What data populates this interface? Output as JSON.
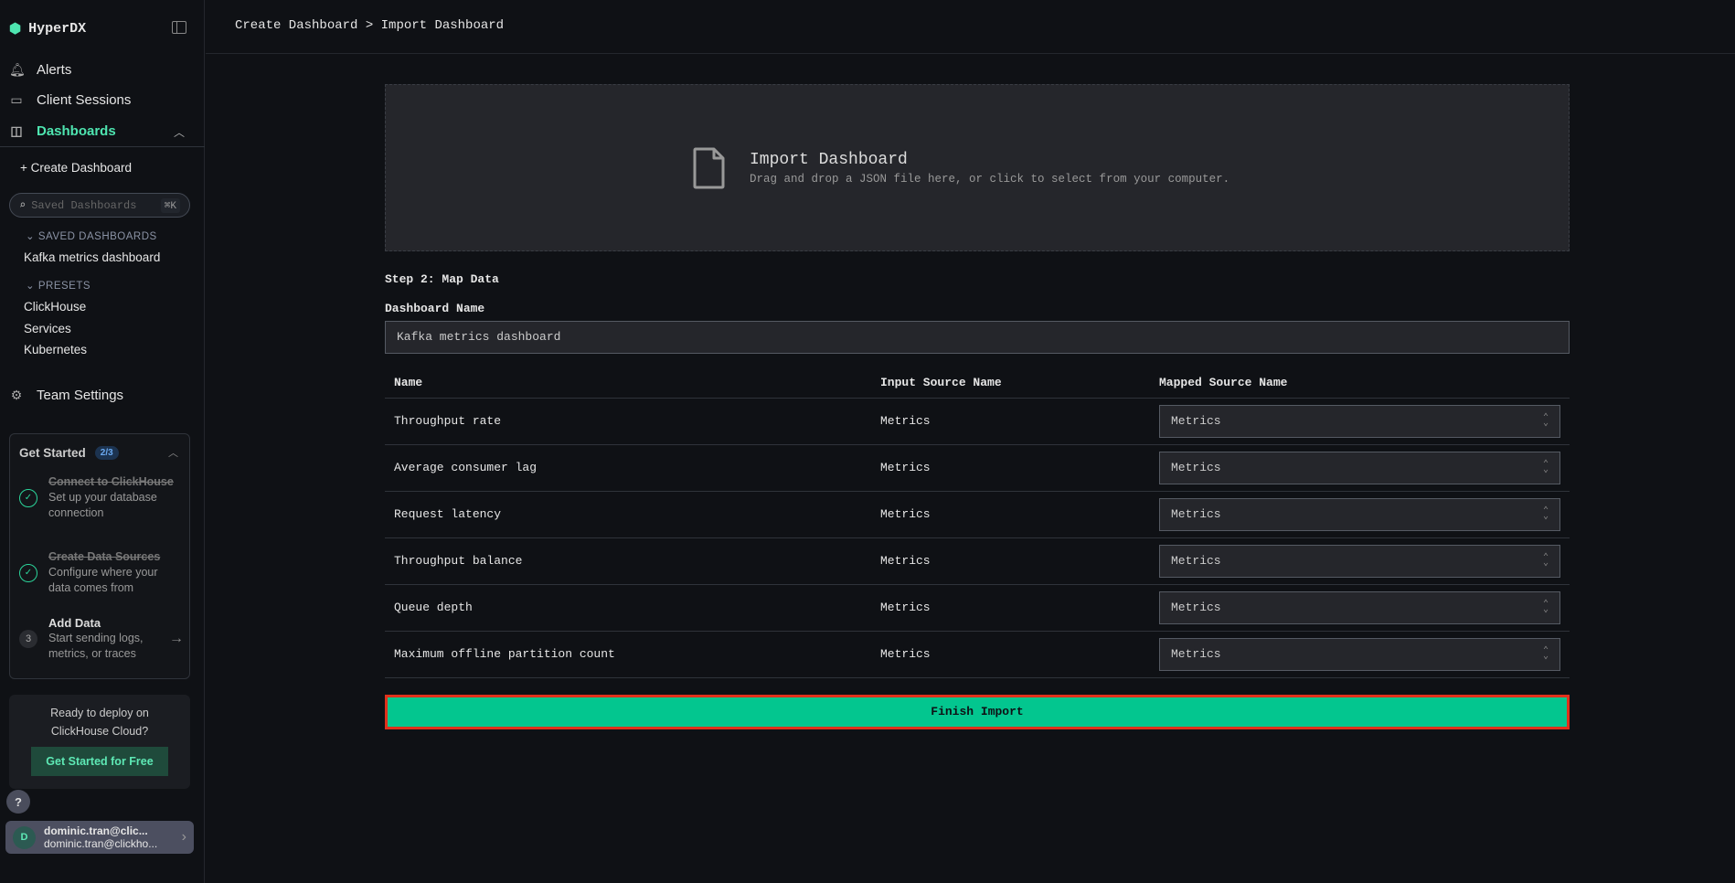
{
  "app": {
    "name": "HyperDX"
  },
  "sidebar": {
    "nav": [
      {
        "label": "Alerts",
        "icon": "bell-icon"
      },
      {
        "label": "Client Sessions",
        "icon": "laptop-icon"
      },
      {
        "label": "Dashboards",
        "icon": "layout-icon"
      }
    ],
    "create_dashboard": "Create Dashboard",
    "search_placeholder": "Saved Dashboards",
    "search_shortcut": "⌘K",
    "saved_header": "SAVED DASHBOARDS",
    "saved": [
      "Kafka metrics dashboard"
    ],
    "presets_header": "PRESETS",
    "presets": [
      "ClickHouse",
      "Services",
      "Kubernetes"
    ],
    "team_settings": "Team Settings",
    "get_started": {
      "title": "Get Started",
      "progress": "2/3",
      "steps": [
        {
          "title": "Connect to ClickHouse",
          "desc": "Set up your database connection",
          "done": true
        },
        {
          "title": "Create Data Sources",
          "desc": "Configure where your data comes from",
          "done": true
        },
        {
          "num": "3",
          "title": "Add Data",
          "desc": "Start sending logs, metrics, or traces",
          "done": false
        }
      ]
    },
    "deploy": {
      "text1": "Ready to deploy on",
      "text2": "ClickHouse Cloud?",
      "button": "Get Started for Free"
    },
    "help": "?",
    "user": {
      "initial": "D",
      "name": "dominic.tran@clic...",
      "email": "dominic.tran@clickho..."
    }
  },
  "header": {
    "breadcrumb": [
      "Create Dashboard",
      "Import Dashboard"
    ],
    "separator": ">"
  },
  "dropzone": {
    "title": "Import Dashboard",
    "subtitle": "Drag and drop a JSON file here, or click to select from your computer."
  },
  "step2": {
    "title": "Step 2: Map Data",
    "name_label": "Dashboard Name",
    "name_value": "Kafka metrics dashboard",
    "columns": [
      "Name",
      "Input Source Name",
      "Mapped Source Name"
    ],
    "rows": [
      {
        "name": "Throughput rate",
        "input": "Metrics",
        "mapped": "Metrics"
      },
      {
        "name": "Average consumer lag",
        "input": "Metrics",
        "mapped": "Metrics"
      },
      {
        "name": "Request latency",
        "input": "Metrics",
        "mapped": "Metrics"
      },
      {
        "name": "Throughput balance",
        "input": "Metrics",
        "mapped": "Metrics"
      },
      {
        "name": "Queue depth",
        "input": "Metrics",
        "mapped": "Metrics"
      },
      {
        "name": "Maximum offline partition count",
        "input": "Metrics",
        "mapped": "Metrics"
      }
    ],
    "finish": "Finish Import"
  },
  "colors": {
    "accent": "#03c68f",
    "nav_active": "#4ee5b0",
    "highlight": "#e0311c"
  }
}
